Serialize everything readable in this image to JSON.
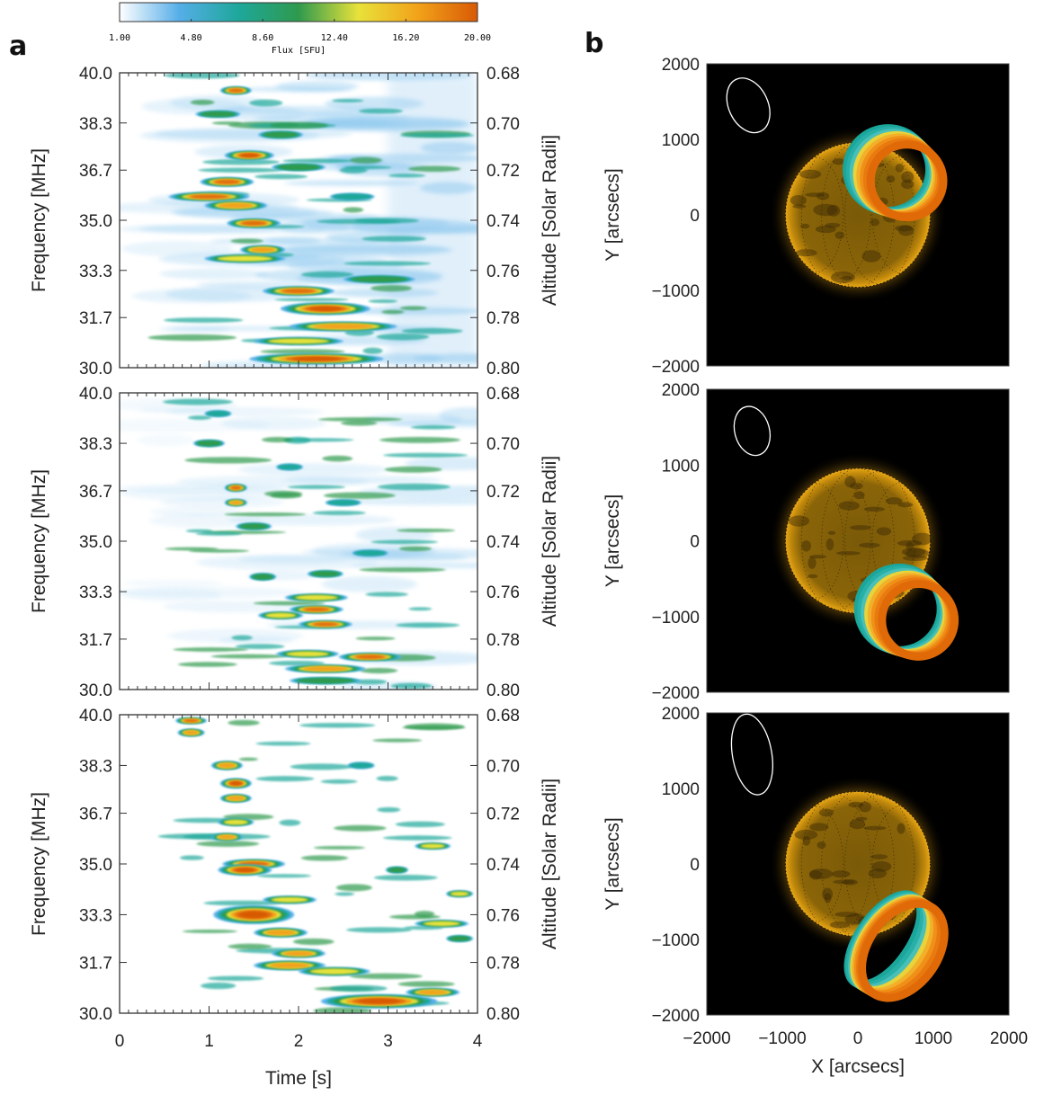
{
  "figure": {
    "panel_a_label": "a",
    "panel_b_label": "b"
  },
  "colorbar": {
    "label": "Flux [SFU]",
    "ticks": [
      "1.00",
      "4.80",
      "8.60",
      "12.40",
      "16.20",
      "20.00"
    ],
    "colors": [
      "#ffffff",
      "#55aee8",
      "#1ea79a",
      "#2f9a4e",
      "#e8e23a",
      "#f2a21a",
      "#d85a05"
    ]
  },
  "chart_data": [
    {
      "type": "heatmap",
      "panel": "a-top",
      "xlabel": "Time [s]",
      "ylabel": "Frequency [MHz]",
      "ylabel_right": "Altitude [Solar Radii]",
      "xlim": [
        0,
        4
      ],
      "ylim": [
        30.0,
        40.0
      ],
      "yticks": [
        "40.0",
        "38.3",
        "36.7",
        "35.0",
        "33.3",
        "31.7",
        "30.0"
      ],
      "yticks_right": [
        "0.68",
        "0.70",
        "0.72",
        "0.74",
        "0.76",
        "0.78",
        "0.80"
      ],
      "value_range": [
        1.0,
        20.0
      ]
    },
    {
      "type": "heatmap",
      "panel": "a-middle",
      "xlabel": "Time [s]",
      "ylabel": "Frequency [MHz]",
      "ylabel_right": "Altitude [Solar Radii]",
      "xlim": [
        0,
        4
      ],
      "ylim": [
        30.0,
        40.0
      ],
      "yticks": [
        "40.0",
        "38.3",
        "36.7",
        "35.0",
        "33.3",
        "31.7",
        "30.0"
      ],
      "yticks_right": [
        "0.68",
        "0.70",
        "0.72",
        "0.74",
        "0.76",
        "0.78",
        "0.80"
      ],
      "value_range": [
        1.0,
        20.0
      ]
    },
    {
      "type": "heatmap",
      "panel": "a-bottom",
      "xlabel": "Time [s]",
      "ylabel": "Frequency [MHz]",
      "ylabel_right": "Altitude [Solar Radii]",
      "xlim": [
        0,
        4
      ],
      "xticks": [
        "0",
        "1",
        "2",
        "3",
        "4"
      ],
      "ylim": [
        30.0,
        40.0
      ],
      "yticks": [
        "40.0",
        "38.3",
        "36.7",
        "35.0",
        "33.3",
        "31.7",
        "30.0"
      ],
      "yticks_right": [
        "0.68",
        "0.70",
        "0.72",
        "0.74",
        "0.76",
        "0.78",
        "0.80"
      ],
      "value_range": [
        1.0,
        20.0
      ]
    },
    {
      "type": "image",
      "panel": "b-top",
      "xlabel": "X [arcsecs]",
      "ylabel": "Y [arcsecs]",
      "xlim": [
        -2000,
        2000
      ],
      "ylim": [
        -2000,
        2000
      ],
      "yticks": [
        "2000",
        "1000",
        "0",
        "−1000",
        "−2000"
      ],
      "source_centroid": [
        400,
        600
      ]
    },
    {
      "type": "image",
      "panel": "b-middle",
      "xlabel": "X [arcsecs]",
      "ylabel": "Y [arcsecs]",
      "xlim": [
        -2000,
        2000
      ],
      "ylim": [
        -2000,
        2000
      ],
      "yticks": [
        "2000",
        "1000",
        "0",
        "−1000",
        "−2000"
      ],
      "source_centroid": [
        550,
        -900
      ]
    },
    {
      "type": "image",
      "panel": "b-bottom",
      "xlabel": "X [arcsecs]",
      "ylabel": "Y [arcsecs]",
      "xlim": [
        -2000,
        2000
      ],
      "xticks": [
        "−2000",
        "−1000",
        "0",
        "1000",
        "2000"
      ],
      "ylim": [
        -2000,
        2000
      ],
      "yticks": [
        "2000",
        "1000",
        "0",
        "−1000",
        "−2000"
      ],
      "source_centroid": [
        350,
        -1000
      ]
    }
  ]
}
